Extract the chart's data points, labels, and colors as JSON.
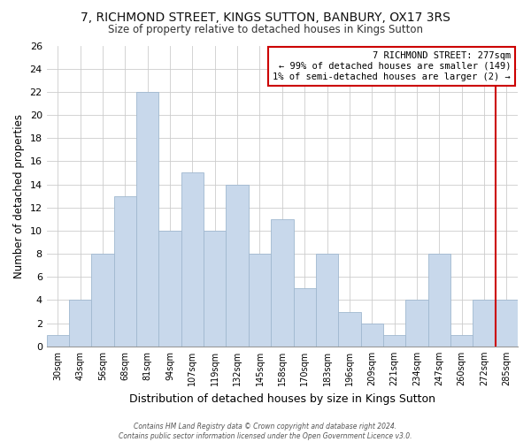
{
  "title": "7, RICHMOND STREET, KINGS SUTTON, BANBURY, OX17 3RS",
  "subtitle": "Size of property relative to detached houses in Kings Sutton",
  "xlabel": "Distribution of detached houses by size in Kings Sutton",
  "ylabel": "Number of detached properties",
  "bar_color": "#c8d8eb",
  "bar_edge_color": "#a0b8d0",
  "categories": [
    "30sqm",
    "43sqm",
    "56sqm",
    "68sqm",
    "81sqm",
    "94sqm",
    "107sqm",
    "119sqm",
    "132sqm",
    "145sqm",
    "158sqm",
    "170sqm",
    "183sqm",
    "196sqm",
    "209sqm",
    "221sqm",
    "234sqm",
    "247sqm",
    "260sqm",
    "272sqm",
    "285sqm"
  ],
  "values": [
    1,
    4,
    8,
    13,
    22,
    10,
    15,
    10,
    14,
    8,
    11,
    5,
    8,
    3,
    2,
    1,
    4,
    8,
    1,
    4,
    4
  ],
  "ylim": [
    0,
    26
  ],
  "yticks": [
    0,
    2,
    4,
    6,
    8,
    10,
    12,
    14,
    16,
    18,
    20,
    22,
    24,
    26
  ],
  "vline_color": "#cc0000",
  "annotation_text": "7 RICHMOND STREET: 277sqm\n← 99% of detached houses are smaller (149)\n1% of semi-detached houses are larger (2) →",
  "annotation_box_color": "#ffffff",
  "annotation_box_edge": "#cc0000",
  "footer1": "Contains HM Land Registry data © Crown copyright and database right 2024.",
  "footer2": "Contains public sector information licensed under the Open Government Licence v3.0.",
  "background_color": "#ffffff",
  "grid_color": "#cccccc"
}
